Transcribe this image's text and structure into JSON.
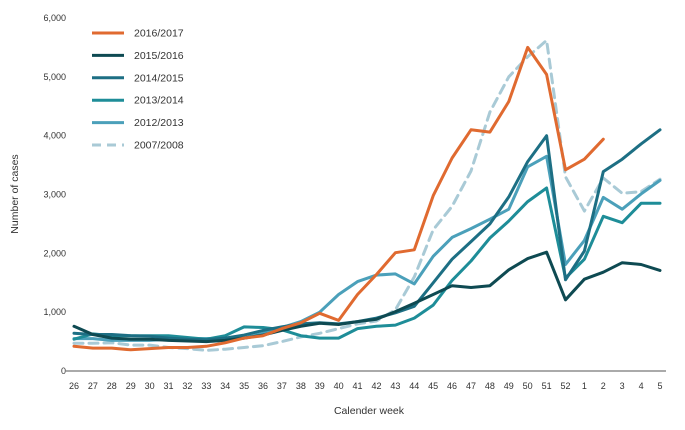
{
  "chart_data": {
    "type": "line",
    "xlabel": "Calender week",
    "ylabel": "Number of cases",
    "ylim": [
      0,
      6000
    ],
    "yticks": [
      0,
      1000,
      2000,
      3000,
      4000,
      5000,
      6000
    ],
    "ytick_labels": [
      "0",
      "1,000",
      "2,000",
      "3,000",
      "4,000",
      "5,000",
      "6,000"
    ],
    "categories": [
      "26",
      "27",
      "28",
      "29",
      "30",
      "31",
      "32",
      "33",
      "34",
      "35",
      "36",
      "37",
      "38",
      "39",
      "40",
      "41",
      "42",
      "43",
      "44",
      "45",
      "46",
      "47",
      "48",
      "49",
      "50",
      "51",
      "52",
      "1",
      "2",
      "3",
      "4",
      "5"
    ],
    "grid": false,
    "legend_position": "top-left",
    "series": [
      {
        "name": "2016/2017",
        "color": "#e06a30",
        "dash": false,
        "values": [
          420,
          390,
          390,
          360,
          380,
          400,
          400,
          420,
          480,
          560,
          600,
          720,
          820,
          980,
          860,
          1300,
          1640,
          2010,
          2060,
          2980,
          3620,
          4100,
          4060,
          4580,
          5500,
          5040,
          3420,
          3600,
          3940,
          null,
          null,
          null
        ]
      },
      {
        "name": "2015/2016",
        "color": "#0e4a52",
        "dash": false,
        "values": [
          760,
          620,
          560,
          540,
          540,
          520,
          510,
          500,
          520,
          560,
          610,
          690,
          760,
          810,
          790,
          840,
          880,
          1010,
          1150,
          1300,
          1450,
          1420,
          1450,
          1720,
          1910,
          2020,
          1210,
          1560,
          1680,
          1840,
          1810,
          1710
        ]
      },
      {
        "name": "2014/2015",
        "color": "#1d6f84",
        "dash": false,
        "values": [
          640,
          620,
          620,
          600,
          590,
          560,
          540,
          530,
          560,
          610,
          690,
          750,
          800,
          820,
          800,
          840,
          900,
          990,
          1100,
          1500,
          1900,
          2200,
          2500,
          2960,
          3560,
          4000,
          1550,
          2040,
          3390,
          3600,
          3860,
          4100
        ]
      },
      {
        "name": "2013/2014",
        "color": "#1e8d98",
        "dash": false,
        "values": [
          540,
          630,
          600,
          600,
          600,
          600,
          570,
          540,
          600,
          750,
          740,
          700,
          600,
          560,
          560,
          720,
          760,
          780,
          900,
          1120,
          1540,
          1870,
          2260,
          2550,
          2880,
          3110,
          1580,
          1900,
          2630,
          2520,
          2850,
          2850
        ]
      },
      {
        "name": "2012/2013",
        "color": "#4ba0ba",
        "dash": false,
        "values": [
          550,
          550,
          520,
          520,
          520,
          540,
          550,
          550,
          560,
          560,
          640,
          740,
          840,
          1000,
          1300,
          1520,
          1630,
          1650,
          1480,
          1950,
          2270,
          2420,
          2580,
          2750,
          3470,
          3650,
          1810,
          2220,
          2950,
          2750,
          3010,
          3240
        ]
      },
      {
        "name": "2007/2008",
        "color": "#a9cad6",
        "dash": true,
        "values": [
          470,
          470,
          480,
          440,
          440,
          400,
          380,
          350,
          370,
          400,
          430,
          500,
          580,
          640,
          720,
          800,
          850,
          1040,
          1600,
          2400,
          2800,
          3400,
          4400,
          5000,
          5340,
          5620,
          3300,
          2720,
          3280,
          3020,
          3050,
          3260
        ]
      }
    ]
  }
}
